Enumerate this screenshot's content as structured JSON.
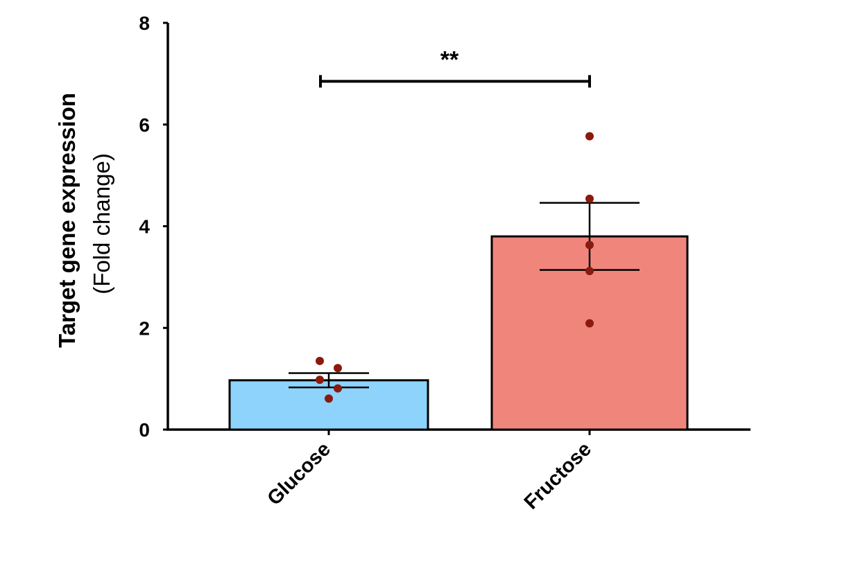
{
  "chart_data": {
    "type": "bar",
    "title": "",
    "ylabel": "Target gene expression",
    "ylabel_sub": "(Fold change)",
    "xlabel": "",
    "ylim": [
      0,
      8
    ],
    "yticks": [
      0,
      2,
      4,
      6,
      8
    ],
    "categories": [
      "Glucose",
      "Fructose"
    ],
    "values": [
      0.97,
      3.8
    ],
    "error": [
      0.14,
      0.66
    ],
    "points": [
      [
        1.35,
        1.21,
        0.98,
        0.81,
        0.61
      ],
      [
        5.77,
        4.54,
        3.63,
        3.12,
        2.09
      ]
    ],
    "bar_colors": [
      "#8dd3fb",
      "#f0857c"
    ],
    "point_color": "#8b1a0e",
    "significance": {
      "label": "**",
      "from": "Glucose",
      "to": "Fructose",
      "y": 6.85
    },
    "grid": false,
    "legend": "none"
  }
}
